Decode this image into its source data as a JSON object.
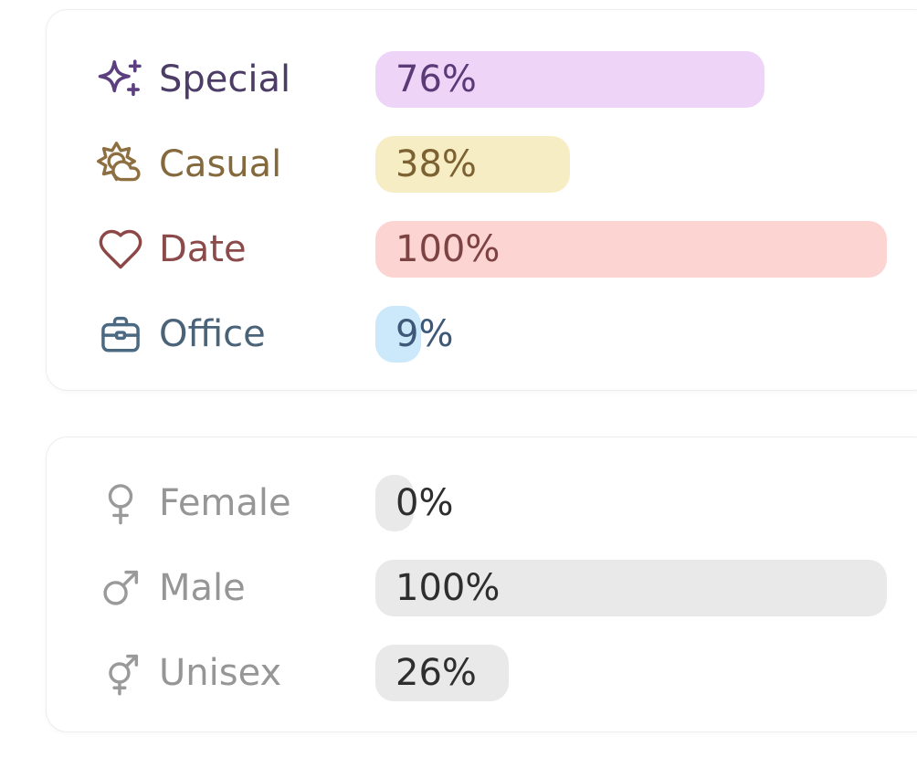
{
  "page": {
    "background": "#ffffff",
    "card_background": "#ffffff",
    "card_border": "#ededed"
  },
  "chart_data": [
    {
      "type": "bar",
      "orientation": "horizontal",
      "group": "occasion",
      "title": "",
      "unit": "%",
      "xlim": [
        0,
        100
      ],
      "grid": false,
      "legend": false,
      "categories": [
        "Special",
        "Casual",
        "Date",
        "Office"
      ],
      "values": [
        76,
        38,
        100,
        9
      ],
      "rows": [
        {
          "label": "Special",
          "icon": "sparkles-icon",
          "value": 76,
          "value_label": "76%",
          "label_color": "#4c3c66",
          "pct_color": "#5c3a78",
          "icon_color": "#5b3f7e",
          "bar_color": "#eed5f8"
        },
        {
          "label": "Casual",
          "icon": "sun-cloud-icon",
          "value": 38,
          "value_label": "38%",
          "label_color": "#84693d",
          "pct_color": "#7c6232",
          "icon_color": "#8d6f41",
          "bar_color": "#f7edc4"
        },
        {
          "label": "Date",
          "icon": "heart-icon",
          "value": 100,
          "value_label": "100%",
          "label_color": "#8c4b4b",
          "pct_color": "#7d4343",
          "icon_color": "#8e4747",
          "bar_color": "#fcd4d2"
        },
        {
          "label": "Office",
          "icon": "briefcase-icon",
          "value": 9,
          "value_label": "9%",
          "label_color": "#4a6379",
          "pct_color": "#3d5878",
          "icon_color": "#4c6982",
          "bar_color": "#cce8fb"
        }
      ]
    },
    {
      "type": "bar",
      "orientation": "horizontal",
      "group": "gender",
      "title": "",
      "unit": "%",
      "xlim": [
        0,
        100
      ],
      "grid": false,
      "legend": false,
      "categories": [
        "Female",
        "Male",
        "Unisex"
      ],
      "values": [
        0,
        100,
        26
      ],
      "rows": [
        {
          "label": "Female",
          "icon": "female-icon",
          "value": 0,
          "value_label": "0%",
          "label_color": "#969696",
          "pct_color": "#2e2e2e",
          "icon_color": "#9a9a9a",
          "bar_color": "#e9e9e9"
        },
        {
          "label": "Male",
          "icon": "male-icon",
          "value": 100,
          "value_label": "100%",
          "label_color": "#969696",
          "pct_color": "#2e2e2e",
          "icon_color": "#9a9a9a",
          "bar_color": "#e9e9e9"
        },
        {
          "label": "Unisex",
          "icon": "unisex-icon",
          "value": 26,
          "value_label": "26%",
          "label_color": "#969696",
          "pct_color": "#2e2e2e",
          "icon_color": "#9a9a9a",
          "bar_color": "#e9e9e9"
        }
      ]
    }
  ]
}
